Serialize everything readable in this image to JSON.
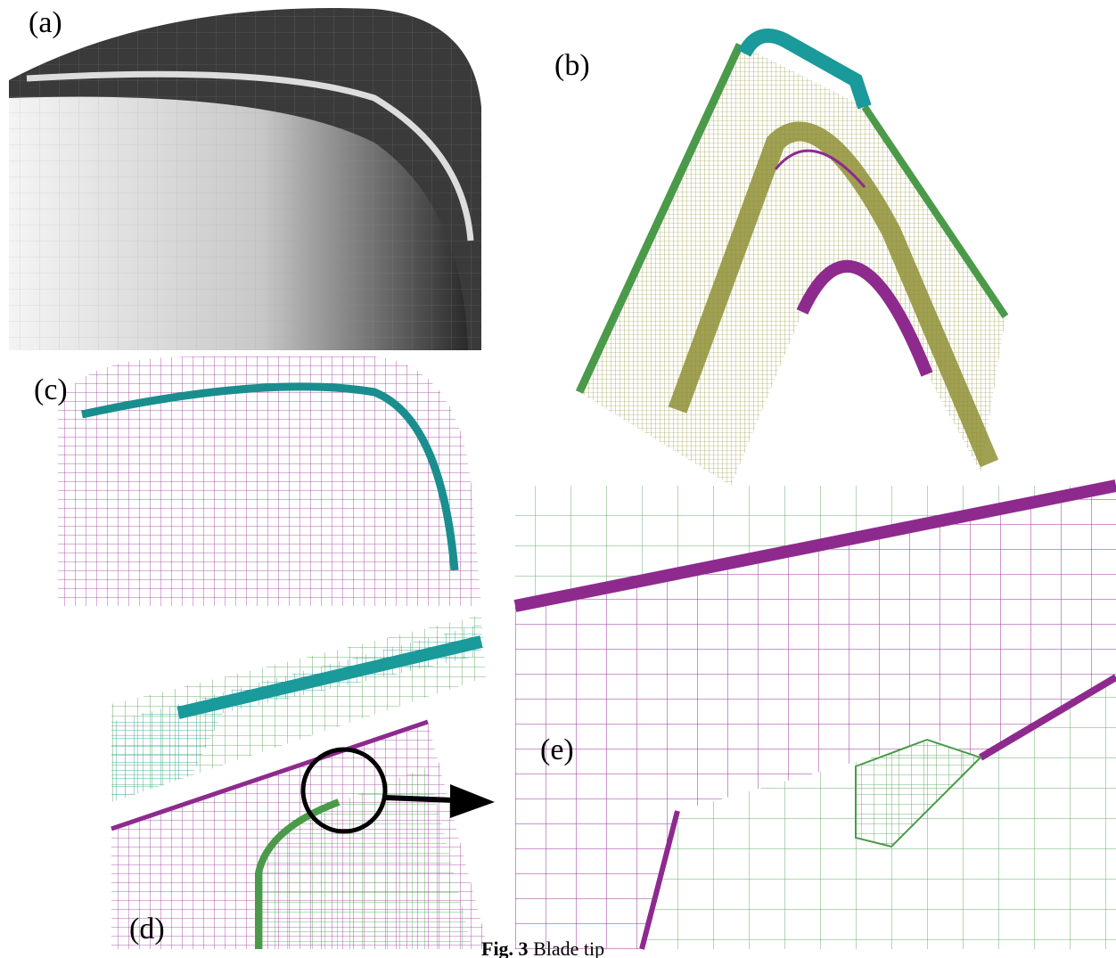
{
  "panels": [
    {
      "label": "(a)"
    },
    {
      "label": "(b)"
    },
    {
      "label": "(c)"
    },
    {
      "label": "(d)"
    },
    {
      "label": "(e)"
    }
  ],
  "caption": {
    "label": "Fig. 3",
    "text": "Blade tip"
  }
}
